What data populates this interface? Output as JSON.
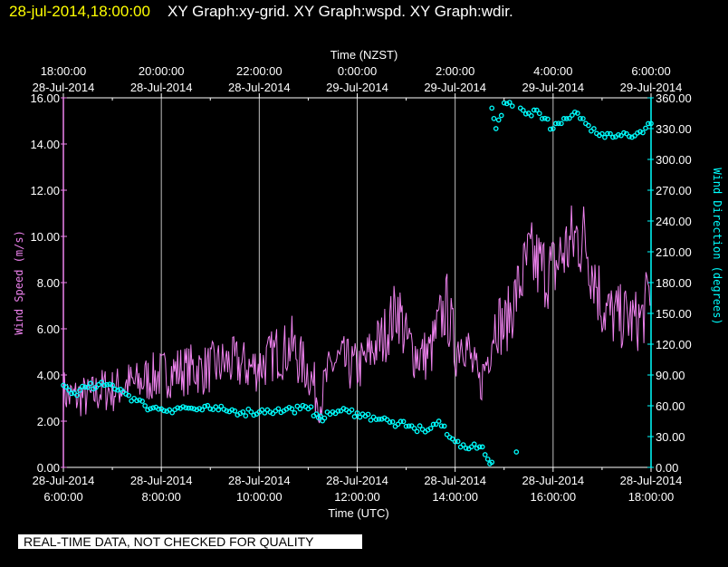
{
  "header": {
    "timestamp": "28-jul-2014,18:00:00",
    "titles": "XY Graph:xy-grid.  XY Graph:wspd.  XY Graph:wdir."
  },
  "banner": "REAL-TIME DATA, NOT CHECKED FOR QUALITY",
  "colors": {
    "background": "#000000",
    "speed": "#ee82ee",
    "direction": "#00ffff",
    "grid": "#c0c0c0",
    "timestamp": "#ffff00"
  },
  "chart_data": {
    "type": "line",
    "grid": true,
    "top_axis": {
      "label": "Time (NZST)",
      "ticks": [
        {
          "time": "18:00:00",
          "date": "28-Jul-2014"
        },
        {
          "time": "20:00:00",
          "date": "28-Jul-2014"
        },
        {
          "time": "22:00:00",
          "date": "28-Jul-2014"
        },
        {
          "time": "0:00:00",
          "date": "29-Jul-2014"
        },
        {
          "time": "2:00:00",
          "date": "29-Jul-2014"
        },
        {
          "time": "4:00:00",
          "date": "29-Jul-2014"
        },
        {
          "time": "6:00:00",
          "date": "29-Jul-2014"
        }
      ]
    },
    "bottom_axis": {
      "label": "Time (UTC)",
      "range": [
        "2014-07-28 06:00",
        "2014-07-28 18:00"
      ],
      "ticks": [
        {
          "date": "28-Jul-2014",
          "time": "6:00:00"
        },
        {
          "date": "28-Jul-2014",
          "time": "8:00:00"
        },
        {
          "date": "28-Jul-2014",
          "time": "10:00:00"
        },
        {
          "date": "28-Jul-2014",
          "time": "12:00:00"
        },
        {
          "date": "28-Jul-2014",
          "time": "14:00:00"
        },
        {
          "date": "28-Jul-2014",
          "time": "16:00:00"
        },
        {
          "date": "28-Jul-2014",
          "time": "18:00:00"
        }
      ]
    },
    "left_axis": {
      "label": "Wind Speed (m/s)",
      "ylim": [
        0,
        16
      ],
      "ticks": [
        "0.00",
        "2.00",
        "4.00",
        "6.00",
        "8.00",
        "10.00",
        "12.00",
        "14.00",
        "16.00"
      ]
    },
    "right_axis": {
      "label": "Wind Direction (degrees)",
      "ylim": [
        0,
        360
      ],
      "ticks": [
        "0.00",
        "30.00",
        "60.00",
        "90.00",
        "120.00",
        "150.00",
        "180.00",
        "210.00",
        "240.00",
        "270.00",
        "300.00",
        "330.00",
        "360.00"
      ]
    },
    "series": [
      {
        "key": "wspd",
        "style": "line",
        "axis": "left",
        "points": [
          [
            "06:00",
            3.3
          ],
          [
            "06:10",
            3.0
          ],
          [
            "06:20",
            3.1
          ],
          [
            "06:30",
            3.0
          ],
          [
            "06:40",
            3.2
          ],
          [
            "06:50",
            3.4
          ],
          [
            "07:00",
            3.3
          ],
          [
            "07:10",
            3.5
          ],
          [
            "07:20",
            3.6
          ],
          [
            "07:30",
            3.6
          ],
          [
            "07:40",
            3.8
          ],
          [
            "07:50",
            3.9
          ],
          [
            "08:00",
            4.0
          ],
          [
            "08:10",
            4.1
          ],
          [
            "08:20",
            4.2
          ],
          [
            "08:30",
            4.2
          ],
          [
            "08:40",
            4.3
          ],
          [
            "08:50",
            4.2
          ],
          [
            "09:00",
            4.3
          ],
          [
            "09:10",
            4.4
          ],
          [
            "09:20",
            4.5
          ],
          [
            "09:30",
            4.5
          ],
          [
            "09:40",
            4.4
          ],
          [
            "09:50",
            4.3
          ],
          [
            "10:00",
            4.4
          ],
          [
            "10:10",
            4.6
          ],
          [
            "10:20",
            5.0
          ],
          [
            "10:30",
            5.0
          ],
          [
            "10:40",
            5.3
          ],
          [
            "10:50",
            4.6
          ],
          [
            "11:00",
            4.2
          ],
          [
            "11:10",
            3.2
          ],
          [
            "11:15",
            2.8
          ],
          [
            "11:20",
            3.6
          ],
          [
            "11:30",
            4.5
          ],
          [
            "11:40",
            4.6
          ],
          [
            "11:50",
            4.4
          ],
          [
            "12:00",
            4.3
          ],
          [
            "12:10",
            4.6
          ],
          [
            "12:20",
            5.2
          ],
          [
            "12:30",
            5.5
          ],
          [
            "12:40",
            6.2
          ],
          [
            "12:50",
            7.0
          ],
          [
            "13:00",
            5.5
          ],
          [
            "13:10",
            5.0
          ],
          [
            "13:20",
            4.8
          ],
          [
            "13:30",
            5.0
          ],
          [
            "13:40",
            6.2
          ],
          [
            "13:50",
            7.0
          ],
          [
            "14:00",
            5.0
          ],
          [
            "14:10",
            5.8
          ],
          [
            "14:20",
            4.5
          ],
          [
            "14:30",
            3.5
          ],
          [
            "14:40",
            4.8
          ],
          [
            "14:50",
            6.5
          ],
          [
            "15:00",
            6.0
          ],
          [
            "15:10",
            7.0
          ],
          [
            "15:20",
            8.0
          ],
          [
            "15:30",
            9.0
          ],
          [
            "15:40",
            8.8
          ],
          [
            "15:50",
            8.5
          ],
          [
            "16:00",
            8.5
          ],
          [
            "16:10",
            9.2
          ],
          [
            "16:20",
            9.6
          ],
          [
            "16:30",
            10.0
          ],
          [
            "16:40",
            9.8
          ],
          [
            "16:50",
            8.5
          ],
          [
            "17:00",
            7.0
          ],
          [
            "17:10",
            6.6
          ],
          [
            "17:20",
            6.5
          ],
          [
            "17:30",
            6.5
          ],
          [
            "17:40",
            6.3
          ],
          [
            "17:50",
            6.5
          ],
          [
            "18:00",
            8.0
          ]
        ]
      },
      {
        "key": "wdir",
        "style": "markers",
        "axis": "right",
        "points": [
          [
            "06:00",
            80
          ],
          [
            "06:10",
            72
          ],
          [
            "06:20",
            75
          ],
          [
            "06:30",
            78
          ],
          [
            "06:40",
            78
          ],
          [
            "06:50",
            80
          ],
          [
            "07:00",
            80
          ],
          [
            "07:10",
            76
          ],
          [
            "07:20",
            70
          ],
          [
            "07:30",
            65
          ],
          [
            "07:40",
            60
          ],
          [
            "07:50",
            58
          ],
          [
            "08:00",
            57
          ],
          [
            "08:10",
            56
          ],
          [
            "08:20",
            58
          ],
          [
            "08:30",
            58
          ],
          [
            "08:40",
            57
          ],
          [
            "08:50",
            56
          ],
          [
            "09:00",
            57
          ],
          [
            "09:10",
            56
          ],
          [
            "09:20",
            55
          ],
          [
            "09:30",
            55
          ],
          [
            "09:40",
            54
          ],
          [
            "09:50",
            54
          ],
          [
            "10:00",
            54
          ],
          [
            "10:10",
            56
          ],
          [
            "10:20",
            55
          ],
          [
            "10:30",
            55
          ],
          [
            "10:40",
            57
          ],
          [
            "10:50",
            57
          ],
          [
            "11:00",
            57
          ],
          [
            "11:10",
            52
          ],
          [
            "11:15",
            50
          ],
          [
            "11:20",
            48
          ],
          [
            "11:30",
            54
          ],
          [
            "11:40",
            55
          ],
          [
            "11:50",
            54
          ],
          [
            "12:00",
            53
          ],
          [
            "12:10",
            50
          ],
          [
            "12:20",
            49
          ],
          [
            "12:30",
            47
          ],
          [
            "12:40",
            44
          ],
          [
            "12:50",
            42
          ],
          [
            "13:00",
            40
          ],
          [
            "13:10",
            38
          ],
          [
            "13:20",
            37
          ],
          [
            "13:30",
            38
          ],
          [
            "13:40",
            45
          ],
          [
            "13:50",
            32
          ],
          [
            "14:00",
            25
          ],
          [
            "14:10",
            22
          ],
          [
            "14:20",
            20
          ],
          [
            "14:30",
            20
          ],
          [
            "14:40",
            8
          ],
          [
            "14:45",
            5
          ],
          [
            "14:45",
            350
          ],
          [
            "14:50",
            330
          ],
          [
            "15:00",
            355
          ],
          [
            "15:10",
            352
          ],
          [
            "15:15",
            15
          ],
          [
            "15:20",
            350
          ],
          [
            "15:30",
            345
          ],
          [
            "15:40",
            348
          ],
          [
            "15:50",
            340
          ],
          [
            "16:00",
            330
          ],
          [
            "16:10",
            335
          ],
          [
            "16:20",
            340
          ],
          [
            "16:30",
            345
          ],
          [
            "16:40",
            335
          ],
          [
            "16:50",
            330
          ],
          [
            "17:00",
            325
          ],
          [
            "17:10",
            325
          ],
          [
            "17:20",
            324
          ],
          [
            "17:30",
            325
          ],
          [
            "17:40",
            323
          ],
          [
            "17:50",
            326
          ],
          [
            "18:00",
            335
          ]
        ]
      }
    ]
  }
}
